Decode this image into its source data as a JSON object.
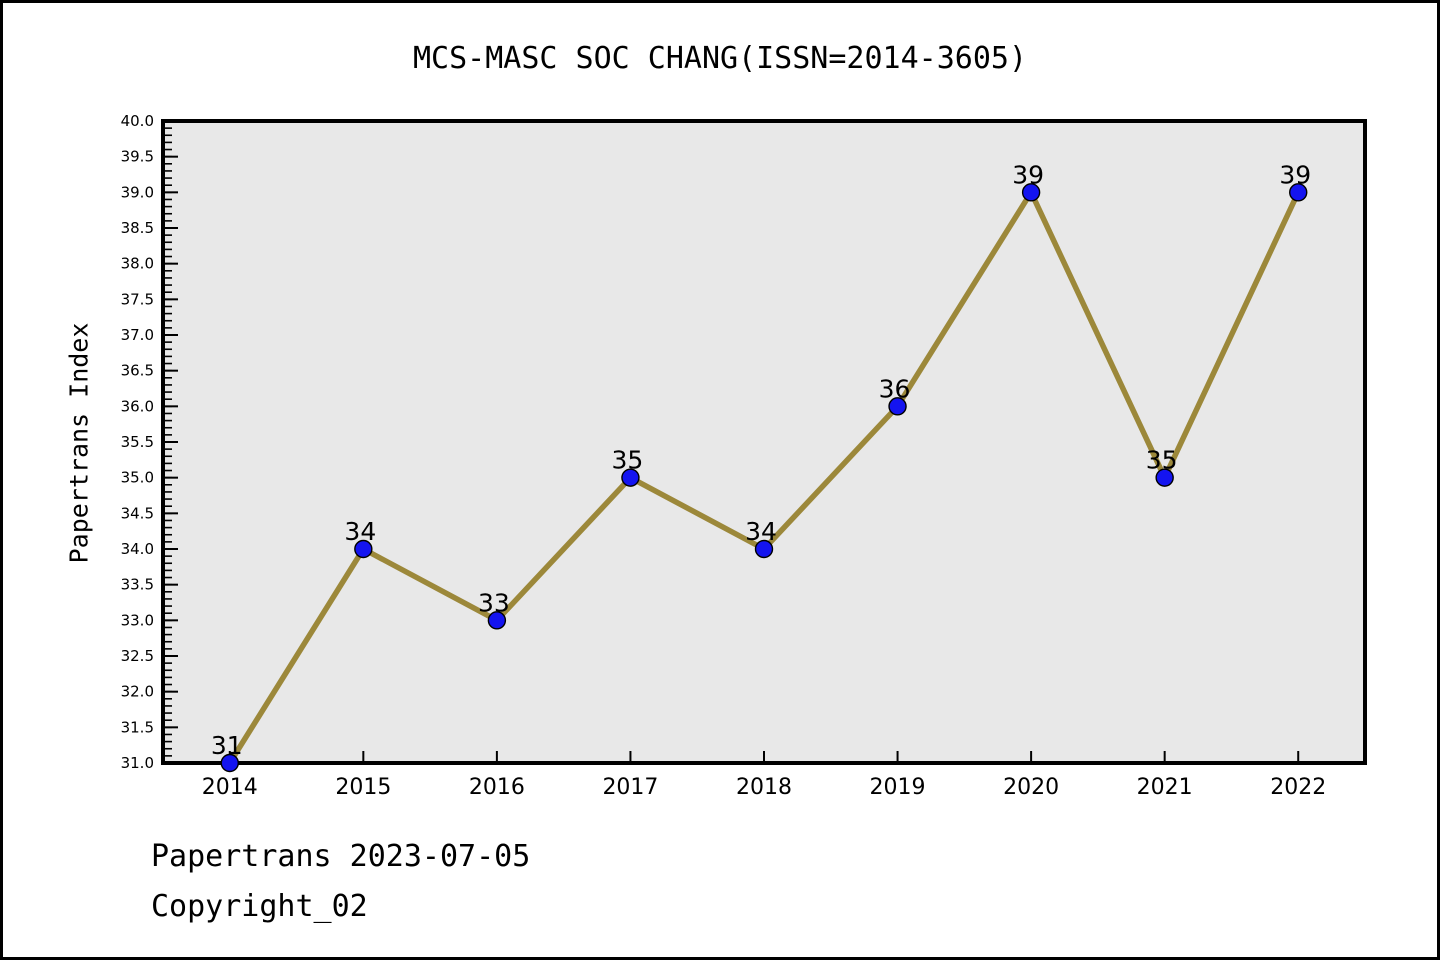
{
  "chart_data": {
    "type": "line",
    "title": "MCS-MASC SOC CHANG(ISSN=2014-3605)",
    "ylabel": "Papertrans Index",
    "xlabel": "",
    "categories": [
      2014,
      2015,
      2016,
      2017,
      2018,
      2019,
      2020,
      2021,
      2022
    ],
    "values": [
      31,
      34,
      33,
      35,
      34,
      36,
      39,
      35,
      39
    ],
    "point_labels": [
      "31",
      "34",
      "33",
      "35",
      "34",
      "36",
      "39",
      "35",
      "39"
    ],
    "ylim": [
      31.0,
      40.0
    ],
    "xlim": [
      2013.5,
      2022.5
    ],
    "y_major_step": 0.5,
    "y_minor_step": 0.1,
    "y_tick_format_decimals": 1,
    "grid": false,
    "legend": null,
    "line_color": "#9c883a",
    "marker_color": "#1414f0",
    "marker_edge_color": "#000000",
    "plot_bg": "#e8e8e8",
    "axis_color": "#000000"
  },
  "footer": {
    "line1": "Papertrans 2023-07-05",
    "line2": "Copyright_02"
  }
}
